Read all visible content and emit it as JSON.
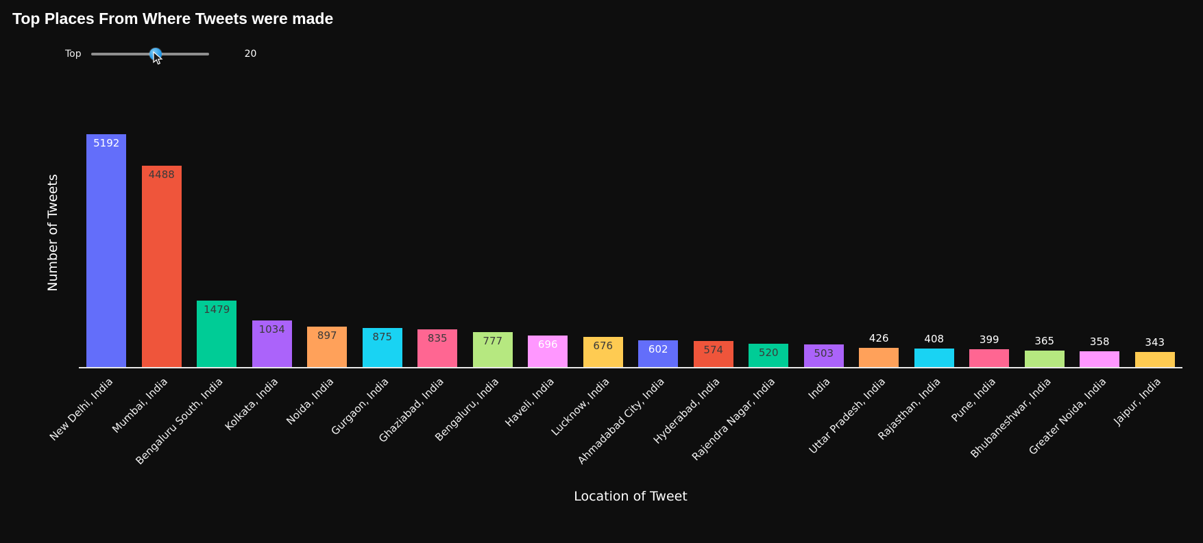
{
  "title": "Top Places From Where Tweets were made",
  "slider": {
    "label": "Top",
    "value": "20",
    "handle_position_pct": 55,
    "handle_color": "#2196f3",
    "track_color": "#8f8f8f"
  },
  "chart_data": {
    "type": "bar",
    "title": "Top Places From Where Tweets were made",
    "xlabel": "Location of Tweet",
    "ylabel": "Number of Tweets",
    "ylim": [
      0,
      5500
    ],
    "grid": false,
    "legend": "none",
    "background": "#0e0e0e",
    "categories": [
      "New Delhi, India",
      "Mumbai, India",
      "Bengaluru South, India",
      "Kolkata, India",
      "Noida, India",
      "Gurgaon, India",
      "Ghaziabad, India",
      "Bengaluru, India",
      "Haveli, India",
      "Lucknow, India",
      "Ahmadabad City, India",
      "Hyderabad, India",
      "Rajendra Nagar, India",
      "India",
      "Uttar Pradesh, India",
      "Rajasthan, India",
      "Pune, India",
      "Bhubaneshwar, India",
      "Greater Noida, India",
      "Jaipur, India"
    ],
    "values": [
      5192,
      4488,
      1479,
      1034,
      897,
      875,
      835,
      777,
      696,
      676,
      602,
      574,
      520,
      503,
      426,
      408,
      399,
      365,
      358,
      343
    ],
    "bar_colors": [
      "#636EFA",
      "#EF553B",
      "#00CC96",
      "#AB63FA",
      "#FFA15A",
      "#19D3F3",
      "#FF6692",
      "#B6E880",
      "#FF97FF",
      "#FECB52",
      "#636EFA",
      "#EF553B",
      "#00CC96",
      "#AB63FA",
      "#FFA15A",
      "#19D3F3",
      "#FF6692",
      "#B6E880",
      "#FF97FF",
      "#FECB52"
    ],
    "label_positions": [
      "inside",
      "inside",
      "inside",
      "inside",
      "inside",
      "inside",
      "inside",
      "inside",
      "inside",
      "inside",
      "inside",
      "inside",
      "inside",
      "inside",
      "outside",
      "outside",
      "outside",
      "outside",
      "outside",
      "outside"
    ],
    "label_colors": [
      "#ffffff",
      "#3a3a3a",
      "#3a3a3a",
      "#3a3a3a",
      "#3a3a3a",
      "#3a3a3a",
      "#3a3a3a",
      "#3a3a3a",
      "#ffffff",
      "#3a3a3a",
      "#ffffff",
      "#3a3a3a",
      "#3a3a3a",
      "#3a3a3a",
      "#ffffff",
      "#ffffff",
      "#ffffff",
      "#ffffff",
      "#ffffff",
      "#ffffff"
    ]
  }
}
